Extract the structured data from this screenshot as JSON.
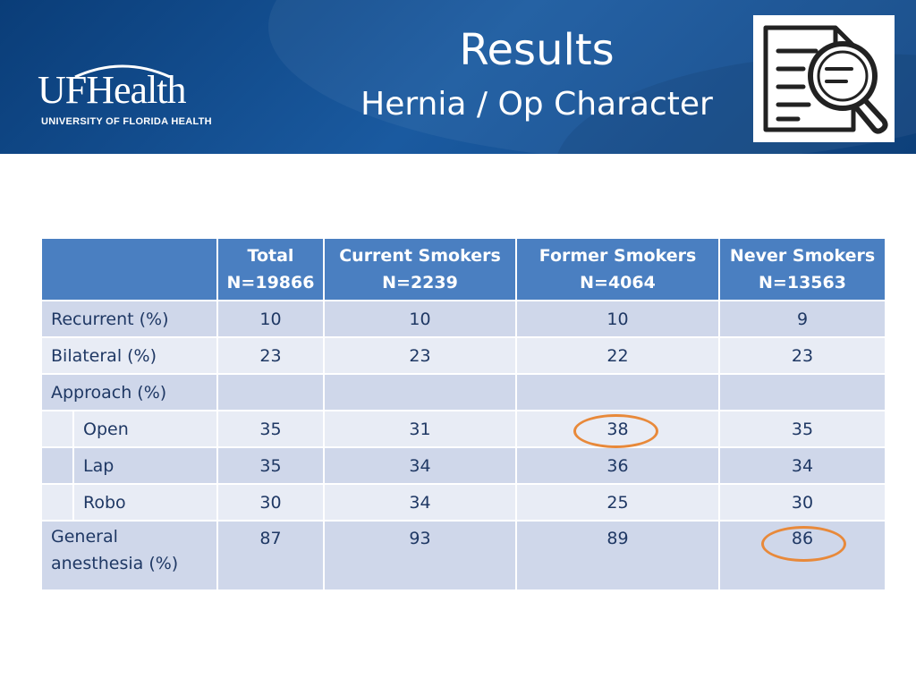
{
  "header": {
    "logo": {
      "wordmark": "UFHealth",
      "tagline": "UNIVERSITY OF FLORIDA HEALTH"
    },
    "title": "Results",
    "subtitle": "Hernia / Op Character",
    "icon": "document-search-icon"
  },
  "table": {
    "columns": [
      {
        "line1": "",
        "line2": ""
      },
      {
        "line1": "Total",
        "line2": "N=19866"
      },
      {
        "line1": "Current Smokers",
        "line2": "N=2239"
      },
      {
        "line1": "Former Smokers",
        "line2": "N=4064"
      },
      {
        "line1": "Never Smokers",
        "line2": "N=13563"
      }
    ],
    "rows": [
      {
        "label": "Recurrent (%)",
        "values": [
          "10",
          "10",
          "10",
          "9"
        ],
        "indent": false
      },
      {
        "label": "Bilateral (%)",
        "values": [
          "23",
          "23",
          "22",
          "23"
        ],
        "indent": false
      },
      {
        "label": "Approach (%)",
        "values": [
          "",
          "",
          "",
          ""
        ],
        "indent": false
      },
      {
        "label": "Open",
        "values": [
          "35",
          "31",
          "38",
          "35"
        ],
        "indent": true
      },
      {
        "label": "Lap",
        "values": [
          "35",
          "34",
          "36",
          "34"
        ],
        "indent": true
      },
      {
        "label": "Robo",
        "values": [
          "30",
          "34",
          "25",
          "30"
        ],
        "indent": true
      },
      {
        "label_line1": "General",
        "label_line2": "anesthesia (%)",
        "values": [
          "87",
          "93",
          "89",
          "86"
        ],
        "indent": false
      }
    ]
  },
  "highlight_color": "#e8893a"
}
